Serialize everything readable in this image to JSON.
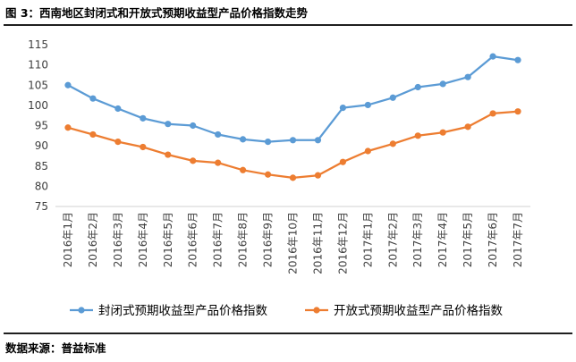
{
  "header": {
    "title": "图 3：西南地区封闭式和开放式预期收益型产品价格指数走势"
  },
  "footer": {
    "source": "数据来源：普益标准"
  },
  "chart_data": {
    "type": "line",
    "title": "图 3：西南地区封闭式和开放式预期收益型产品价格指数走势",
    "xlabel": "",
    "ylabel": "",
    "ylim": [
      75,
      115
    ],
    "yticks": [
      75,
      80,
      85,
      90,
      95,
      100,
      105,
      110,
      115
    ],
    "grid": false,
    "legend_position": "bottom",
    "categories": [
      "2016年1月",
      "2016年2月",
      "2016年3月",
      "2016年4月",
      "2016年5月",
      "2016年6月",
      "2016年7月",
      "2016年8月",
      "2016年9月",
      "2016年10月",
      "2016年11月",
      "2016年12月",
      "2017年1月",
      "2017年2月",
      "2017年3月",
      "2017年4月",
      "2017年5月",
      "2017年6月",
      "2017年7月"
    ],
    "series": [
      {
        "name": "封闭式预期收益型产品价格指数",
        "color": "#5B9BD5",
        "values": [
          105.0,
          101.7,
          99.2,
          96.8,
          95.4,
          95.0,
          92.8,
          91.6,
          91.0,
          91.4,
          91.4,
          99.4,
          100.1,
          101.9,
          104.5,
          105.3,
          107.0,
          112.1,
          111.2
        ]
      },
      {
        "name": "开放式预期收益型产品价格指数",
        "color": "#ED7D31",
        "values": [
          94.5,
          92.8,
          91.0,
          89.7,
          87.8,
          86.3,
          85.8,
          84.0,
          82.9,
          82.1,
          82.7,
          86.0,
          88.7,
          90.5,
          92.5,
          93.3,
          94.7,
          98.0,
          98.5
        ]
      }
    ]
  }
}
